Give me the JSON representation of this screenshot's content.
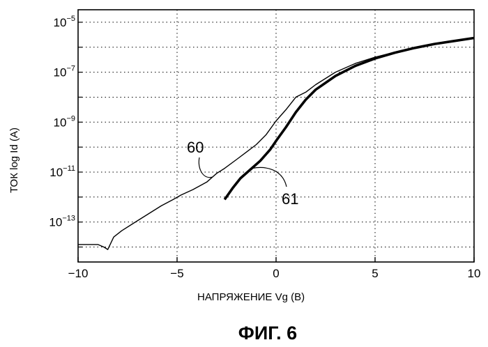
{
  "figure_caption": "ФИГ. 6",
  "chart_data": {
    "type": "line",
    "title": "",
    "xlabel": "НАПРЯЖЕНИЕ Vg (В)",
    "ylabel": "ТОК log Id (A)",
    "xlim": [
      -10,
      10
    ],
    "ylim_log10": [
      -14.6,
      -4.5
    ],
    "y_scale": "log",
    "grid": "dotted",
    "x_ticks": [
      {
        "value": -10,
        "label": "−10"
      },
      {
        "value": -5,
        "label": "−5"
      },
      {
        "value": 0,
        "label": "0"
      },
      {
        "value": 5,
        "label": "5"
      },
      {
        "value": 10,
        "label": "10"
      }
    ],
    "y_ticks": [
      {
        "exp": -5,
        "base": "10",
        "sup": "−5"
      },
      {
        "exp": -7,
        "base": "10",
        "sup": "−7"
      },
      {
        "exp": -9,
        "base": "10",
        "sup": "−9"
      },
      {
        "exp": -11,
        "base": "10",
        "sup": "−11"
      },
      {
        "exp": -13,
        "base": "10",
        "sup": "−13"
      }
    ],
    "series": [
      {
        "name": "60",
        "color": "#000000",
        "x": [
          -10,
          -9,
          -8.7,
          -8.5,
          -8.2,
          -7.8,
          -7.2,
          -6.5,
          -5.8,
          -5.2,
          -4.8,
          -4.2,
          -3.5,
          -3.0,
          -2.6,
          -2.0,
          -1.5,
          -1.0,
          -0.5,
          0.0,
          0.5,
          1.0,
          1.5,
          2.0,
          3.0,
          4.0,
          5.0,
          6.0,
          7.0,
          8.0,
          9.0,
          10.0
        ],
        "y": [
          -13.9,
          -13.9,
          -14.0,
          -14.1,
          -13.6,
          -13.35,
          -13.05,
          -12.7,
          -12.35,
          -12.1,
          -11.92,
          -11.7,
          -11.4,
          -11.05,
          -10.85,
          -10.5,
          -10.2,
          -9.9,
          -9.5,
          -8.95,
          -8.5,
          -8.0,
          -7.8,
          -7.5,
          -7.0,
          -6.65,
          -6.4,
          -6.2,
          -6.02,
          -5.88,
          -5.76,
          -5.65
        ]
      },
      {
        "name": "61",
        "color": "#000000",
        "x": [
          -2.6,
          -2.2,
          -1.8,
          -1.3,
          -0.8,
          -0.3,
          0.0,
          0.5,
          1.0,
          1.5,
          2.0,
          3.0,
          4.0,
          5.0,
          6.0,
          7.0,
          8.0,
          9.0,
          10.0
        ],
        "y": [
          -12.1,
          -11.65,
          -11.25,
          -10.9,
          -10.55,
          -10.1,
          -9.75,
          -9.2,
          -8.6,
          -8.1,
          -7.7,
          -7.15,
          -6.75,
          -6.45,
          -6.22,
          -6.03,
          -5.87,
          -5.75,
          -5.63
        ]
      }
    ]
  }
}
